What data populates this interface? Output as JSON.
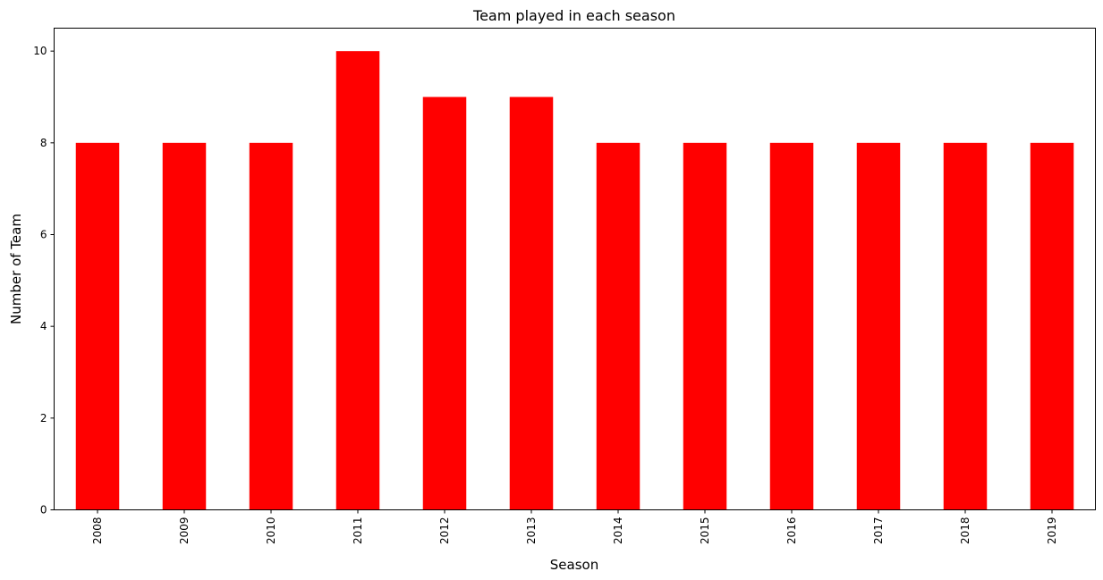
{
  "chart_data": {
    "type": "bar",
    "title": "Team played in each season",
    "xlabel": "Season",
    "ylabel": "Number of Team",
    "categories": [
      "2008",
      "2009",
      "2010",
      "2011",
      "2012",
      "2013",
      "2014",
      "2015",
      "2016",
      "2017",
      "2018",
      "2019"
    ],
    "values": [
      8,
      8,
      8,
      10,
      9,
      9,
      8,
      8,
      8,
      8,
      8,
      8
    ],
    "ylim": [
      0,
      10.5
    ],
    "yticks": [
      "0",
      "2",
      "4",
      "6",
      "8",
      "10"
    ],
    "bar_color": "#ff0000",
    "grid": false,
    "xtick_rotation": "vertical"
  }
}
